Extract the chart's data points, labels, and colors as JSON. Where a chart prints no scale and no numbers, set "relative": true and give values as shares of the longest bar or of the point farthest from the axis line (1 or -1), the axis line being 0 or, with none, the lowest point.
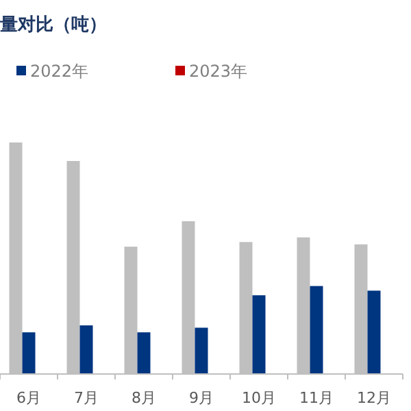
{
  "chart_data": {
    "type": "bar",
    "title": "量对比（吨）",
    "relative": true,
    "legend": "top",
    "categories": [
      "6月",
      "7月",
      "8月",
      "9月",
      "10月",
      "11月",
      "12月"
    ],
    "series": [
      {
        "color": "#bfbfbf",
        "values": [
          1,
          0.92,
          0.55,
          0.66,
          0.57,
          0.59,
          0.56
        ]
      },
      {
        "name": "2022年",
        "color": "#003580",
        "values": [
          0.18,
          0.21,
          0.18,
          0.2,
          0.34,
          0.38,
          0.36
        ]
      },
      {
        "name": "2023年",
        "color": "#c00000",
        "values": [
          null,
          null,
          null,
          null,
          null,
          null,
          null
        ]
      }
    ]
  }
}
